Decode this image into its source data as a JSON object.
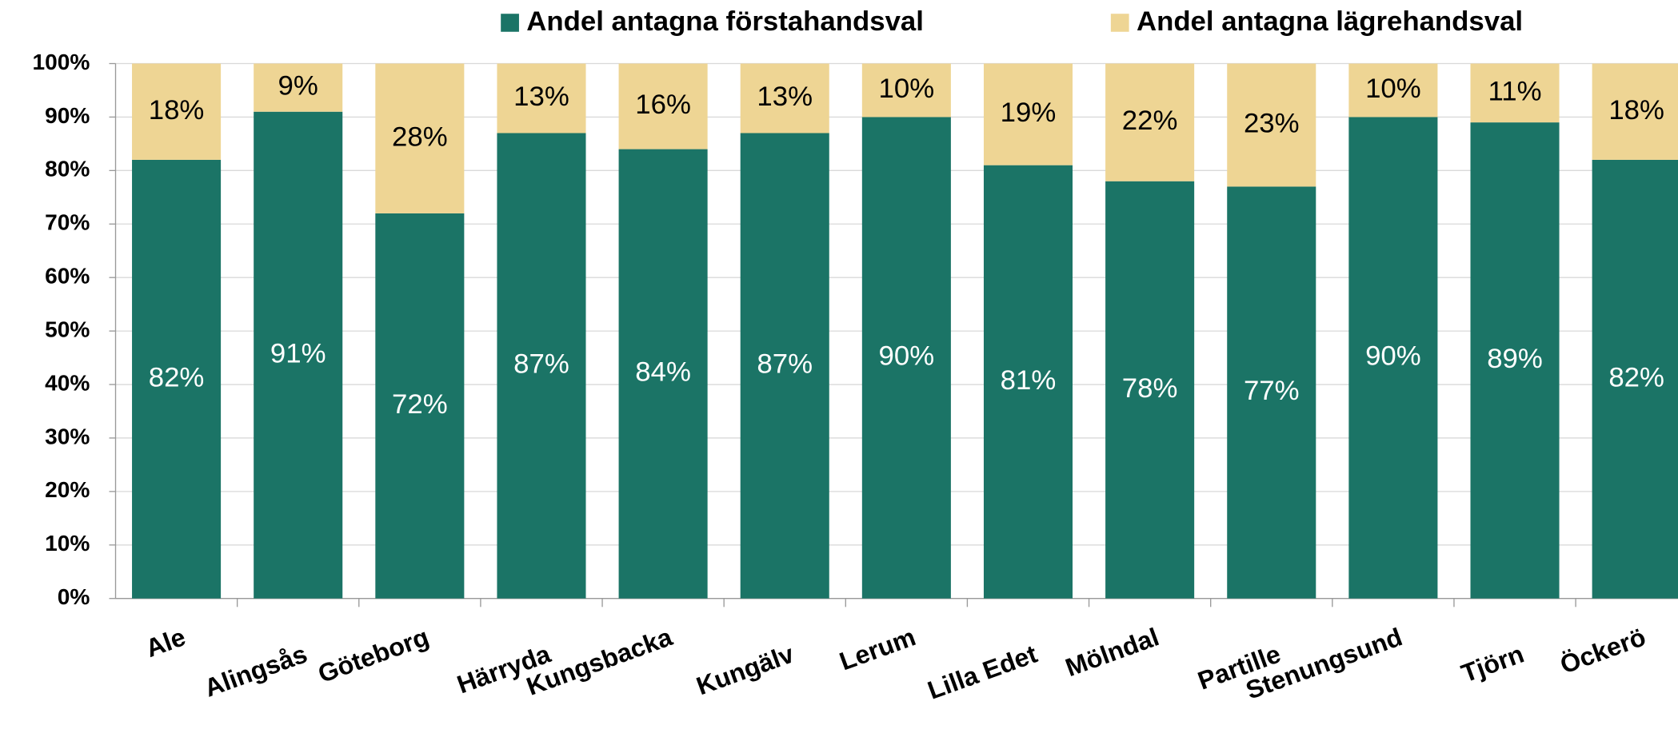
{
  "chart_data": {
    "type": "stacked_bar",
    "categories": [
      "Ale",
      "Alingsås",
      "Göteborg",
      "Härryda",
      "Kungsbacka",
      "Kungälv",
      "Lerum",
      "Lilla Edet",
      "Mölndal",
      "Partille",
      "Stenungsund",
      "Tjörn",
      "Öckerö"
    ],
    "series": [
      {
        "name": "Andel antagna förstahandsval",
        "color": "#1b7466",
        "values": [
          82,
          91,
          72,
          87,
          84,
          87,
          90,
          81,
          78,
          77,
          90,
          89,
          82
        ],
        "value_labels": [
          "82%",
          "91%",
          "72%",
          "87%",
          "84%",
          "87%",
          "90%",
          "81%",
          "78%",
          "77%",
          "90%",
          "89%",
          "82%"
        ]
      },
      {
        "name": "Andel antagna lägrehandsval",
        "color": "#eed594",
        "values": [
          18,
          9,
          28,
          13,
          16,
          13,
          10,
          19,
          22,
          23,
          10,
          11,
          18
        ],
        "value_labels": [
          "18%",
          "9%",
          "28%",
          "13%",
          "16%",
          "13%",
          "10%",
          "19%",
          "22%",
          "23%",
          "10%",
          "11%",
          "18%"
        ]
      }
    ],
    "ylim": [
      0,
      100
    ],
    "yticks": [
      {
        "value": 0,
        "label": "0%"
      },
      {
        "value": 10,
        "label": "10%"
      },
      {
        "value": 20,
        "label": "20%"
      },
      {
        "value": 30,
        "label": "30%"
      },
      {
        "value": 40,
        "label": "40%"
      },
      {
        "value": 50,
        "label": "50%"
      },
      {
        "value": 60,
        "label": "60%"
      },
      {
        "value": 70,
        "label": "70%"
      },
      {
        "value": 80,
        "label": "80%"
      },
      {
        "value": 90,
        "label": "90%"
      },
      {
        "value": 100,
        "label": "100%"
      }
    ],
    "grid": true,
    "legend": "top"
  }
}
